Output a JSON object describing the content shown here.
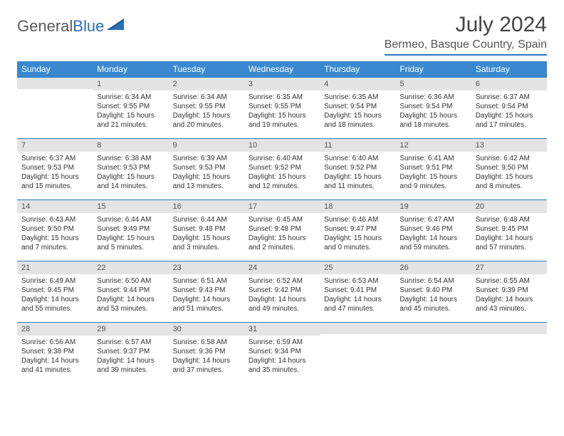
{
  "logo": {
    "text_general": "General",
    "text_blue": "Blue"
  },
  "header": {
    "month_title": "July 2024",
    "location": "Bermeo, Basque Country, Spain"
  },
  "colors": {
    "header_bg": "#3a89d0",
    "rule": "#2b79c2",
    "daynum_bg": "#e4e4e4",
    "text": "#333333"
  },
  "day_labels": [
    "Sunday",
    "Monday",
    "Tuesday",
    "Wednesday",
    "Thursday",
    "Friday",
    "Saturday"
  ],
  "weeks": [
    [
      {
        "n": "",
        "sr": "",
        "ss": "",
        "dl": ""
      },
      {
        "n": "1",
        "sr": "Sunrise: 6:34 AM",
        "ss": "Sunset: 9:55 PM",
        "dl": "Daylight: 15 hours and 21 minutes."
      },
      {
        "n": "2",
        "sr": "Sunrise: 6:34 AM",
        "ss": "Sunset: 9:55 PM",
        "dl": "Daylight: 15 hours and 20 minutes."
      },
      {
        "n": "3",
        "sr": "Sunrise: 6:35 AM",
        "ss": "Sunset: 9:55 PM",
        "dl": "Daylight: 15 hours and 19 minutes."
      },
      {
        "n": "4",
        "sr": "Sunrise: 6:35 AM",
        "ss": "Sunset: 9:54 PM",
        "dl": "Daylight: 15 hours and 18 minutes."
      },
      {
        "n": "5",
        "sr": "Sunrise: 6:36 AM",
        "ss": "Sunset: 9:54 PM",
        "dl": "Daylight: 15 hours and 18 minutes."
      },
      {
        "n": "6",
        "sr": "Sunrise: 6:37 AM",
        "ss": "Sunset: 9:54 PM",
        "dl": "Daylight: 15 hours and 17 minutes."
      }
    ],
    [
      {
        "n": "7",
        "sr": "Sunrise: 6:37 AM",
        "ss": "Sunset: 9:53 PM",
        "dl": "Daylight: 15 hours and 15 minutes."
      },
      {
        "n": "8",
        "sr": "Sunrise: 6:38 AM",
        "ss": "Sunset: 9:53 PM",
        "dl": "Daylight: 15 hours and 14 minutes."
      },
      {
        "n": "9",
        "sr": "Sunrise: 6:39 AM",
        "ss": "Sunset: 9:53 PM",
        "dl": "Daylight: 15 hours and 13 minutes."
      },
      {
        "n": "10",
        "sr": "Sunrise: 6:40 AM",
        "ss": "Sunset: 9:52 PM",
        "dl": "Daylight: 15 hours and 12 minutes."
      },
      {
        "n": "11",
        "sr": "Sunrise: 6:40 AM",
        "ss": "Sunset: 9:52 PM",
        "dl": "Daylight: 15 hours and 11 minutes."
      },
      {
        "n": "12",
        "sr": "Sunrise: 6:41 AM",
        "ss": "Sunset: 9:51 PM",
        "dl": "Daylight: 15 hours and 9 minutes."
      },
      {
        "n": "13",
        "sr": "Sunrise: 6:42 AM",
        "ss": "Sunset: 9:50 PM",
        "dl": "Daylight: 15 hours and 8 minutes."
      }
    ],
    [
      {
        "n": "14",
        "sr": "Sunrise: 6:43 AM",
        "ss": "Sunset: 9:50 PM",
        "dl": "Daylight: 15 hours and 7 minutes."
      },
      {
        "n": "15",
        "sr": "Sunrise: 6:44 AM",
        "ss": "Sunset: 9:49 PM",
        "dl": "Daylight: 15 hours and 5 minutes."
      },
      {
        "n": "16",
        "sr": "Sunrise: 6:44 AM",
        "ss": "Sunset: 9:48 PM",
        "dl": "Daylight: 15 hours and 3 minutes."
      },
      {
        "n": "17",
        "sr": "Sunrise: 6:45 AM",
        "ss": "Sunset: 9:48 PM",
        "dl": "Daylight: 15 hours and 2 minutes."
      },
      {
        "n": "18",
        "sr": "Sunrise: 6:46 AM",
        "ss": "Sunset: 9:47 PM",
        "dl": "Daylight: 15 hours and 0 minutes."
      },
      {
        "n": "19",
        "sr": "Sunrise: 6:47 AM",
        "ss": "Sunset: 9:46 PM",
        "dl": "Daylight: 14 hours and 59 minutes."
      },
      {
        "n": "20",
        "sr": "Sunrise: 6:48 AM",
        "ss": "Sunset: 9:45 PM",
        "dl": "Daylight: 14 hours and 57 minutes."
      }
    ],
    [
      {
        "n": "21",
        "sr": "Sunrise: 6:49 AM",
        "ss": "Sunset: 9:45 PM",
        "dl": "Daylight: 14 hours and 55 minutes."
      },
      {
        "n": "22",
        "sr": "Sunrise: 6:50 AM",
        "ss": "Sunset: 9:44 PM",
        "dl": "Daylight: 14 hours and 53 minutes."
      },
      {
        "n": "23",
        "sr": "Sunrise: 6:51 AM",
        "ss": "Sunset: 9:43 PM",
        "dl": "Daylight: 14 hours and 51 minutes."
      },
      {
        "n": "24",
        "sr": "Sunrise: 6:52 AM",
        "ss": "Sunset: 9:42 PM",
        "dl": "Daylight: 14 hours and 49 minutes."
      },
      {
        "n": "25",
        "sr": "Sunrise: 6:53 AM",
        "ss": "Sunset: 9:41 PM",
        "dl": "Daylight: 14 hours and 47 minutes."
      },
      {
        "n": "26",
        "sr": "Sunrise: 6:54 AM",
        "ss": "Sunset: 9:40 PM",
        "dl": "Daylight: 14 hours and 45 minutes."
      },
      {
        "n": "27",
        "sr": "Sunrise: 6:55 AM",
        "ss": "Sunset: 9:39 PM",
        "dl": "Daylight: 14 hours and 43 minutes."
      }
    ],
    [
      {
        "n": "28",
        "sr": "Sunrise: 6:56 AM",
        "ss": "Sunset: 9:38 PM",
        "dl": "Daylight: 14 hours and 41 minutes."
      },
      {
        "n": "29",
        "sr": "Sunrise: 6:57 AM",
        "ss": "Sunset: 9:37 PM",
        "dl": "Daylight: 14 hours and 39 minutes."
      },
      {
        "n": "30",
        "sr": "Sunrise: 6:58 AM",
        "ss": "Sunset: 9:36 PM",
        "dl": "Daylight: 14 hours and 37 minutes."
      },
      {
        "n": "31",
        "sr": "Sunrise: 6:59 AM",
        "ss": "Sunset: 9:34 PM",
        "dl": "Daylight: 14 hours and 35 minutes."
      },
      {
        "n": "",
        "sr": "",
        "ss": "",
        "dl": ""
      },
      {
        "n": "",
        "sr": "",
        "ss": "",
        "dl": ""
      },
      {
        "n": "",
        "sr": "",
        "ss": "",
        "dl": ""
      }
    ]
  ]
}
